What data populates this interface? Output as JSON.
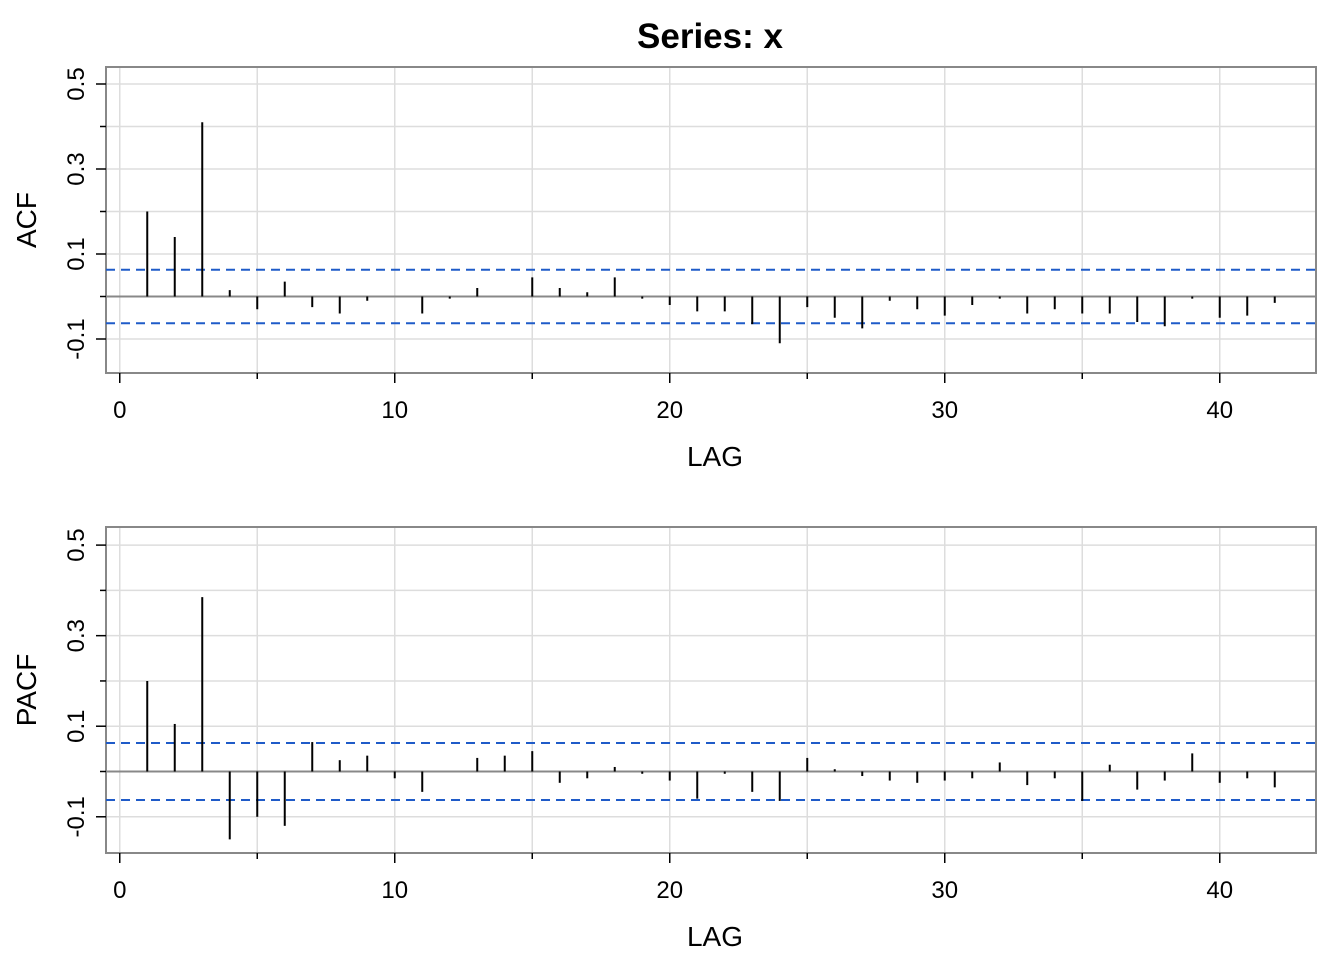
{
  "title": "Series:  x",
  "colors": {
    "spike": "#000000",
    "ci": "#1f5bc8",
    "zero": "#888888",
    "grid": "#dddddd",
    "frame": "#888888"
  },
  "chart_data": [
    {
      "type": "bar",
      "panel": "acf",
      "xlabel": "LAG",
      "ylabel": "ACF",
      "xlim": [
        -0.5,
        43.5
      ],
      "ylim": [
        -0.18,
        0.54
      ],
      "xticks": [
        0,
        10,
        20,
        30,
        40
      ],
      "yticks": [
        -0.1,
        0.1,
        0.3,
        0.5
      ],
      "ytick_labels": [
        "-0.1",
        "0.1",
        "0.3",
        "0.5"
      ],
      "grid": true,
      "ci": [
        0.063,
        -0.063
      ],
      "lags": [
        1,
        2,
        3,
        4,
        5,
        6,
        7,
        8,
        9,
        10,
        11,
        12,
        13,
        14,
        15,
        16,
        17,
        18,
        19,
        20,
        21,
        22,
        23,
        24,
        25,
        26,
        27,
        28,
        29,
        30,
        31,
        32,
        33,
        34,
        35,
        36,
        37,
        38,
        39,
        40,
        41,
        42
      ],
      "values": [
        0.2,
        0.14,
        0.41,
        0.015,
        -0.03,
        0.035,
        -0.025,
        -0.04,
        -0.01,
        0.0,
        -0.04,
        -0.005,
        0.02,
        0.0,
        0.045,
        0.02,
        0.01,
        0.045,
        -0.005,
        -0.02,
        -0.035,
        -0.035,
        -0.065,
        -0.11,
        -0.025,
        -0.05,
        -0.075,
        -0.01,
        -0.03,
        -0.045,
        -0.02,
        -0.005,
        -0.04,
        -0.03,
        -0.04,
        -0.04,
        -0.06,
        -0.07,
        -0.005,
        -0.05,
        -0.045,
        -0.015
      ]
    },
    {
      "type": "bar",
      "panel": "pacf",
      "xlabel": "LAG",
      "ylabel": "PACF",
      "xlim": [
        -0.5,
        43.5
      ],
      "ylim": [
        -0.18,
        0.54
      ],
      "xticks": [
        0,
        10,
        20,
        30,
        40
      ],
      "yticks": [
        -0.1,
        0.1,
        0.3,
        0.5
      ],
      "ytick_labels": [
        "-0.1",
        "0.1",
        "0.3",
        "0.5"
      ],
      "grid": true,
      "ci": [
        0.063,
        -0.063
      ],
      "lags": [
        1,
        2,
        3,
        4,
        5,
        6,
        7,
        8,
        9,
        10,
        11,
        12,
        13,
        14,
        15,
        16,
        17,
        18,
        19,
        20,
        21,
        22,
        23,
        24,
        25,
        26,
        27,
        28,
        29,
        30,
        31,
        32,
        33,
        34,
        35,
        36,
        37,
        38,
        39,
        40,
        41,
        42
      ],
      "values": [
        0.2,
        0.105,
        0.385,
        -0.15,
        -0.1,
        -0.12,
        0.065,
        0.025,
        0.035,
        -0.015,
        -0.045,
        0.0,
        0.03,
        0.035,
        0.045,
        -0.025,
        -0.015,
        0.01,
        -0.005,
        -0.02,
        -0.06,
        -0.005,
        -0.045,
        -0.065,
        0.03,
        0.005,
        -0.01,
        -0.02,
        -0.025,
        -0.02,
        -0.015,
        0.02,
        -0.03,
        -0.015,
        -0.065,
        0.015,
        -0.04,
        -0.02,
        0.04,
        -0.025,
        -0.015,
        -0.035
      ]
    }
  ]
}
